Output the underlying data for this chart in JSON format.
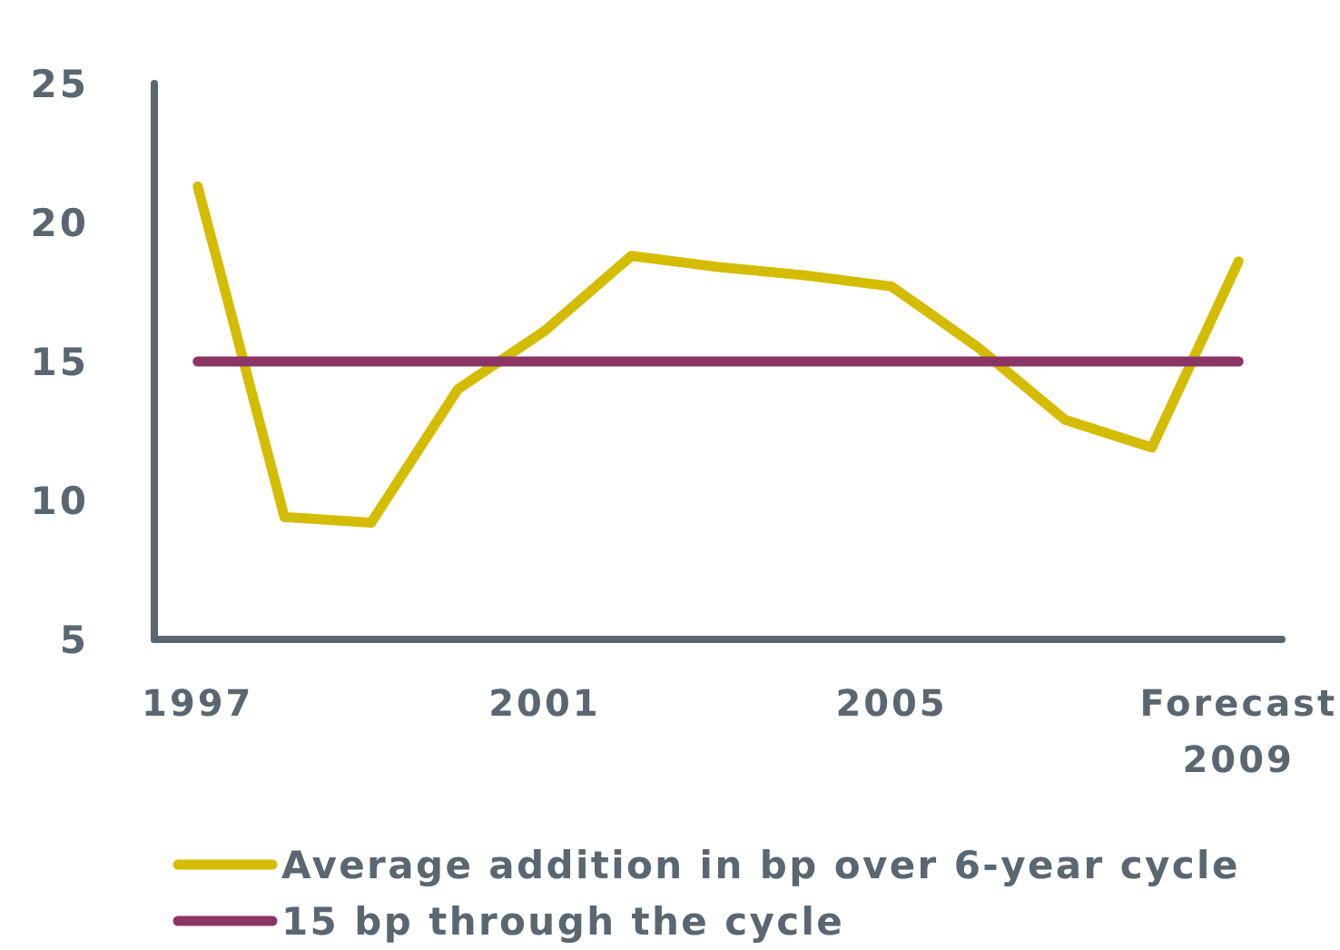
{
  "chart_data": {
    "type": "line",
    "categories": [
      "1997",
      null,
      null,
      null,
      "2001",
      null,
      null,
      null,
      "2005",
      null,
      null,
      null,
      "Forecast 2009"
    ],
    "series": [
      {
        "name": "Average addition in bp over 6-year cycle",
        "color": "#d4bc00",
        "values": [
          21.3,
          9.4,
          9.2,
          14.0,
          16.1,
          18.8,
          18.4,
          18.1,
          17.7,
          15.5,
          12.9,
          11.9,
          18.6
        ]
      },
      {
        "name": "15 bp through the cycle",
        "color": "#8b3566",
        "values": [
          15,
          15,
          15,
          15,
          15,
          15,
          15,
          15,
          15,
          15,
          15,
          15,
          15
        ]
      }
    ],
    "ylim": [
      5,
      25
    ],
    "yticks": [
      5,
      10,
      15,
      20,
      25
    ],
    "grid": false,
    "legend": "bottom"
  }
}
